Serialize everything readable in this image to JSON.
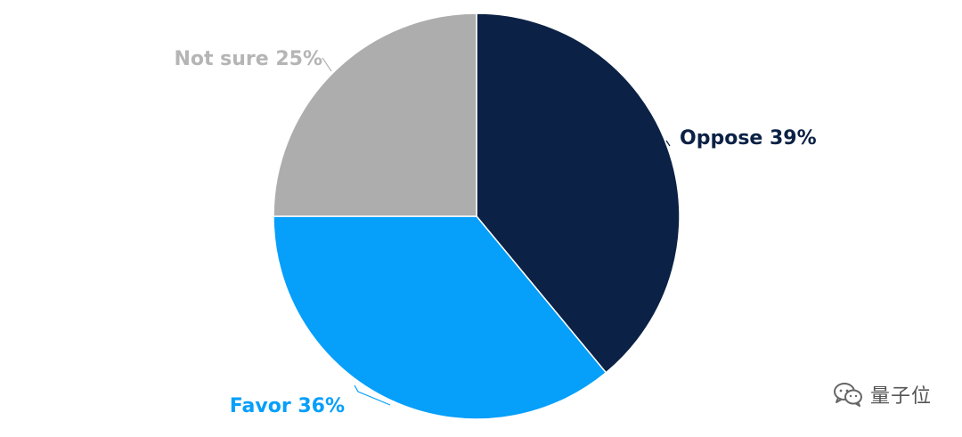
{
  "chart_data": {
    "type": "pie",
    "slices": [
      {
        "label": "Oppose",
        "value": 39,
        "display": "Oppose 39%",
        "color": "#0b2145",
        "label_color": "#0b2145"
      },
      {
        "label": "Favor",
        "value": 36,
        "display": "Favor 36%",
        "color": "#069ffa",
        "label_color": "#069ffa"
      },
      {
        "label": "Not sure",
        "value": 25,
        "display": "Not sure 25%",
        "color": "#adadad",
        "label_color": "#b5b5b5"
      }
    ],
    "start": "12 o'clock",
    "direction": "clockwise"
  },
  "watermark": {
    "text": "量子位",
    "icon": "wechat-icon"
  }
}
